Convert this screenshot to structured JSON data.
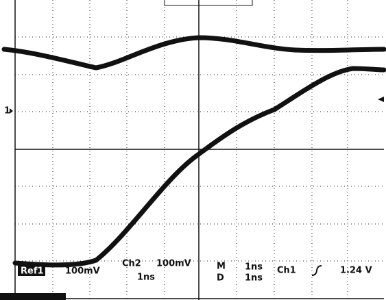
{
  "markers": {
    "ch1": "1"
  },
  "readout": {
    "ref": "Ref1",
    "ref_scale": "100mV",
    "ch2": "Ch2",
    "ch2_scale": "100mV",
    "ch2_time": "1ns",
    "m": "M",
    "d": "D",
    "m_time": "1ns",
    "d_time": "1ns",
    "trigger_source": "Ch1",
    "trigger_level": "1.24 V"
  }
}
